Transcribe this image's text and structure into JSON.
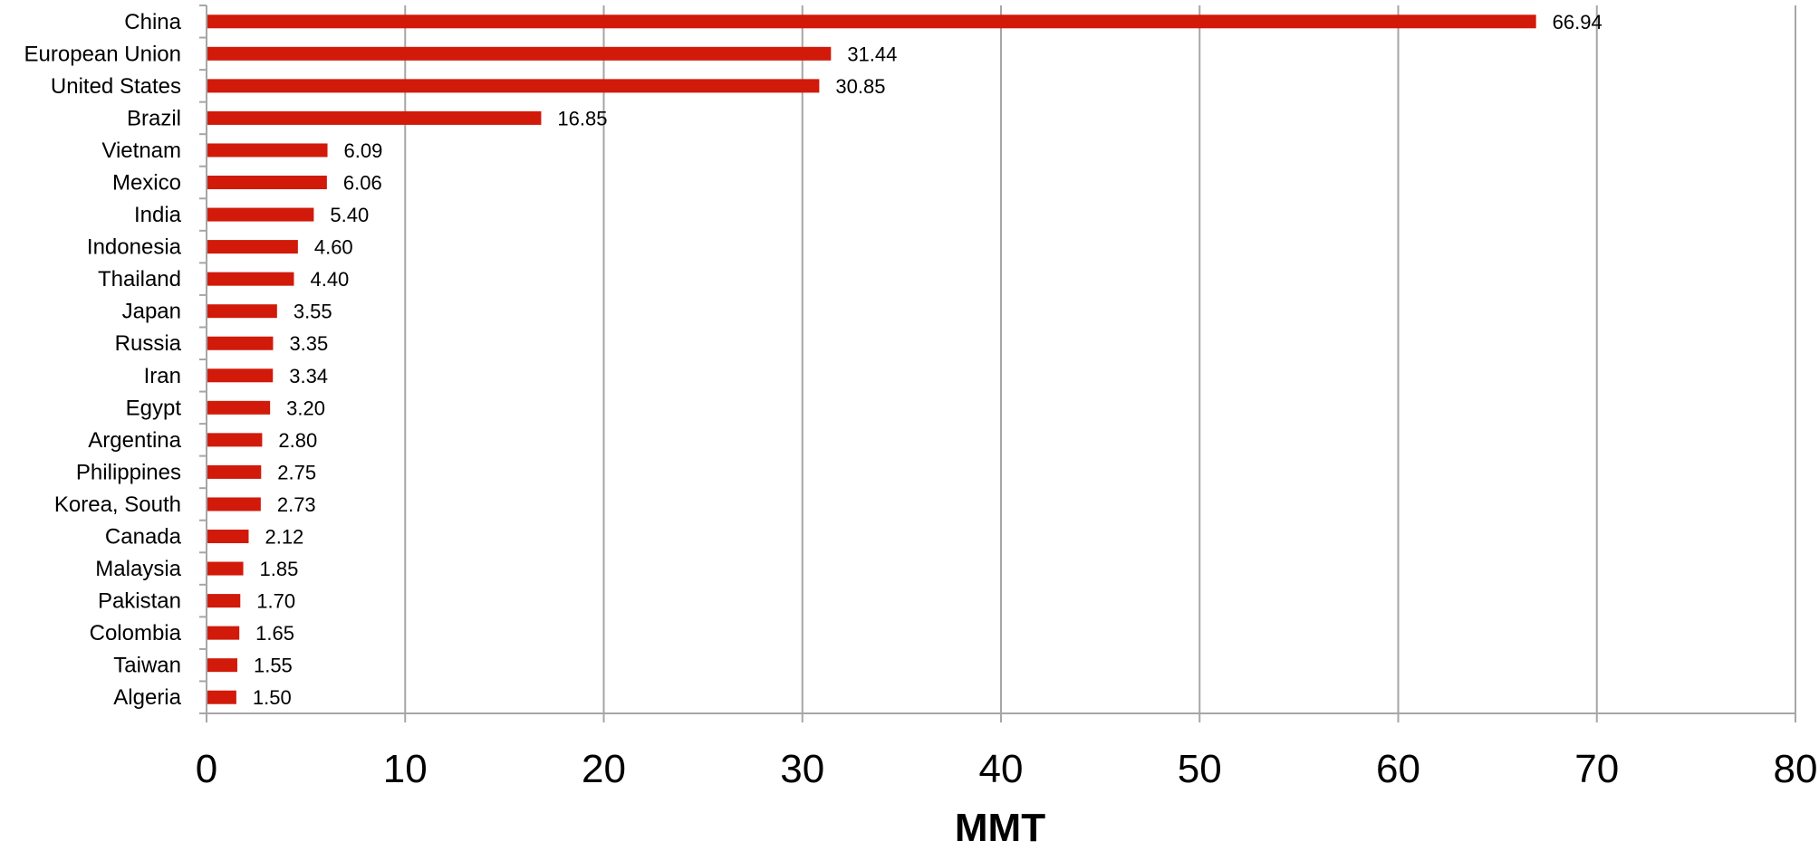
{
  "chart_data": {
    "type": "bar",
    "orientation": "horizontal",
    "categories": [
      "China",
      "European Union",
      "United States",
      "Brazil",
      "Vietnam",
      "Mexico",
      "India",
      "Indonesia",
      "Thailand",
      "Japan",
      "Russia",
      "Iran",
      "Egypt",
      "Argentina",
      "Philippines",
      "Korea, South",
      "Canada",
      "Malaysia",
      "Pakistan",
      "Colombia",
      "Taiwan",
      "Algeria"
    ],
    "values": [
      66.94,
      31.44,
      30.85,
      16.85,
      6.09,
      6.06,
      5.4,
      4.6,
      4.4,
      3.55,
      3.35,
      3.34,
      3.2,
      2.8,
      2.75,
      2.73,
      2.12,
      1.85,
      1.7,
      1.65,
      1.55,
      1.5
    ],
    "value_labels": [
      "66.94",
      "31.44",
      "30.85",
      "16.85",
      "6.09",
      "6.06",
      "5.40",
      "4.60",
      "4.40",
      "3.55",
      "3.35",
      "3.34",
      "3.20",
      "2.80",
      "2.75",
      "2.73",
      "2.12",
      "1.85",
      "1.70",
      "1.65",
      "1.55",
      "1.50"
    ],
    "xticks": [
      "0",
      "10",
      "20",
      "30",
      "40",
      "50",
      "60",
      "70",
      "80"
    ],
    "xlim": [
      0,
      80
    ],
    "xlabel": "MMT",
    "title": "",
    "grid": "vertical",
    "legend": "none",
    "bar_color": "#d11a0a",
    "grid_color": "#a6a6a6"
  }
}
